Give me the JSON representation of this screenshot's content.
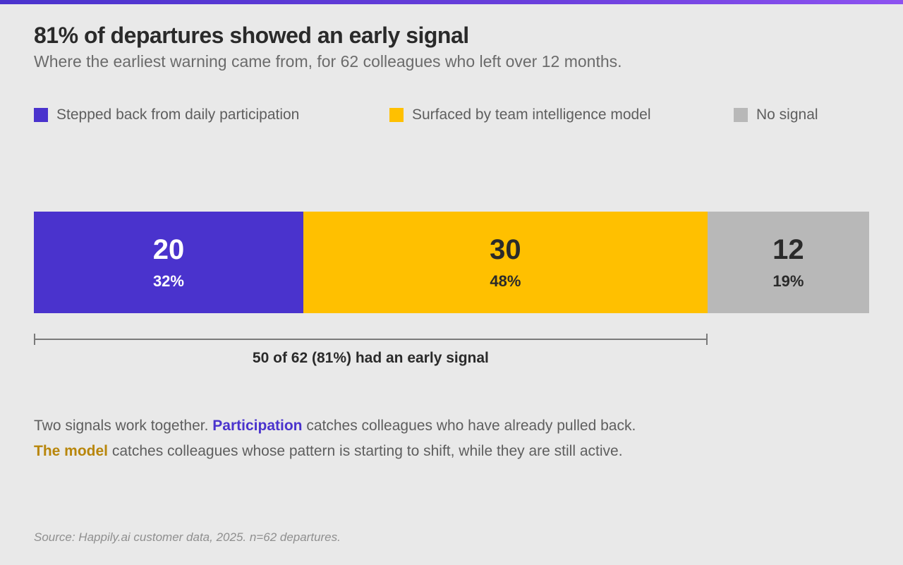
{
  "title": "81% of departures showed an early signal",
  "subtitle": "Where the earliest warning came from, for 62 colleagues who left over 12 months.",
  "colors": {
    "participation": "#4a33cd",
    "model": "#ffc000",
    "none": "#b8b8b8",
    "model_text": "#b8860b"
  },
  "legend": [
    {
      "label": "Stepped back from daily participation",
      "color": "#4a33cd"
    },
    {
      "label": "Surfaced by team intelligence model",
      "color": "#ffc000"
    },
    {
      "label": "No signal",
      "color": "#b8b8b8"
    }
  ],
  "chart_data": {
    "type": "bar",
    "orientation": "horizontal-stacked",
    "total": 62,
    "series": [
      {
        "name": "Stepped back from daily participation",
        "value": 20,
        "percent_label": "32%",
        "color": "#4a33cd",
        "text_color": "#ffffff"
      },
      {
        "name": "Surfaced by team intelligence model",
        "value": 30,
        "percent_label": "48%",
        "color": "#ffc000",
        "text_color": "#2a2a2a"
      },
      {
        "name": "No signal",
        "value": 12,
        "percent_label": "19%",
        "color": "#b8b8b8",
        "text_color": "#2a2a2a"
      }
    ],
    "annotation": {
      "label": "50 of 62 (81%) had an early signal",
      "spans_series": [
        0,
        1
      ]
    },
    "title": "81% of departures showed an early signal",
    "subtitle": "Where the earliest warning came from, for 62 colleagues who left over 12 months.",
    "legend_position": "top",
    "grid": false
  },
  "notes": {
    "line1_prefix": "Two signals work together. ",
    "line1_highlight": "Participation",
    "line1_suffix": " catches colleagues who have already pulled back.",
    "line2_highlight": "The model",
    "line2_suffix": " catches colleagues whose pattern is starting to shift, while they are still active."
  },
  "source": "Source: Happily.ai customer data, 2025. n=62 departures."
}
